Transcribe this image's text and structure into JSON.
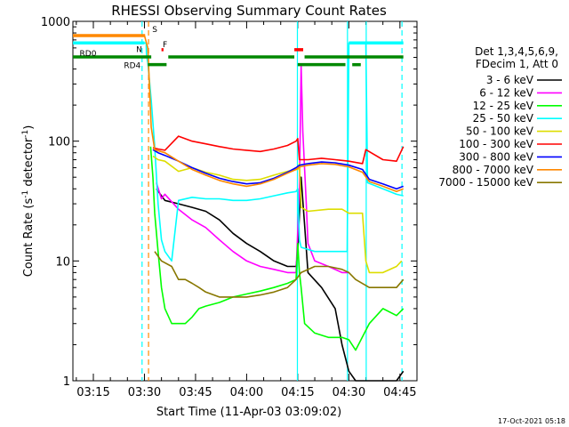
{
  "chart_data": {
    "type": "line",
    "title": "RHESSI Observing Summary Count Rates",
    "xlabel": "Start Time (11-Apr-03 03:09:02)",
    "ylabel_main": "Count Rate (s",
    "ylabel_mid": " detector",
    "ylabel_end": ")",
    "ylabel_sup": "-1",
    "yscale": "log",
    "ylim": [
      1,
      1000
    ],
    "xlim_min": [
      189,
      290
    ],
    "y_ticks": [
      {
        "value": 1,
        "label": "1"
      },
      {
        "value": 10,
        "label": "10"
      },
      {
        "value": 100,
        "label": "100"
      },
      {
        "value": 1000,
        "label": "1000"
      }
    ],
    "x_ticks": [
      {
        "value": 195,
        "label": "03:15"
      },
      {
        "value": 210,
        "label": "03:30"
      },
      {
        "value": 225,
        "label": "03:45"
      },
      {
        "value": 240,
        "label": "04:00"
      },
      {
        "value": 255,
        "label": "04:15"
      },
      {
        "value": 270,
        "label": "04:30"
      },
      {
        "value": 285,
        "label": "04:45"
      }
    ],
    "legend_header": [
      "Det 1,3,4,5,6,9,",
      "FDecim 1, Att 0"
    ],
    "legend_position": "right",
    "timestamp": "17-Oct-2021 05:18",
    "series": [
      {
        "name": "3 - 6 keV",
        "color": "#000000",
        "points": [
          [
            213.5,
            40
          ],
          [
            216,
            32
          ],
          [
            220,
            30
          ],
          [
            224,
            28
          ],
          [
            228,
            26
          ],
          [
            232,
            22
          ],
          [
            236,
            17
          ],
          [
            240,
            14
          ],
          [
            244,
            12
          ],
          [
            248,
            10
          ],
          [
            252,
            9
          ],
          [
            254.5,
            9
          ],
          [
            255,
            12
          ],
          [
            256,
            50
          ],
          [
            257,
            20
          ],
          [
            258,
            8
          ],
          [
            262,
            6
          ],
          [
            266,
            4
          ],
          [
            268,
            2
          ],
          [
            270,
            1.2
          ],
          [
            272,
            1
          ],
          [
            276,
            1
          ],
          [
            280,
            1
          ],
          [
            284,
            1
          ],
          [
            286,
            1.2
          ]
        ]
      },
      {
        "name": "6 - 12 keV",
        "color": "#ff00ff",
        "points": [
          [
            213.5,
            45
          ],
          [
            215,
            33
          ],
          [
            216,
            36
          ],
          [
            220,
            27
          ],
          [
            224,
            22
          ],
          [
            228,
            19
          ],
          [
            232,
            15
          ],
          [
            236,
            12
          ],
          [
            240,
            10
          ],
          [
            244,
            9
          ],
          [
            248,
            8.5
          ],
          [
            252,
            8
          ],
          [
            254.5,
            8
          ],
          [
            255.5,
            40
          ],
          [
            256,
            430
          ],
          [
            256.5,
            120
          ],
          [
            257.5,
            30
          ],
          [
            258,
            14
          ],
          [
            260,
            10
          ],
          [
            264,
            9
          ],
          [
            268,
            8
          ],
          [
            270,
            8
          ]
        ]
      },
      {
        "name": "12 - 25 keV",
        "color": "#00ff00",
        "points": [
          [
            211.8,
            90
          ],
          [
            212.5,
            50
          ],
          [
            213,
            25
          ],
          [
            214,
            12
          ],
          [
            215,
            6
          ],
          [
            216,
            4
          ],
          [
            218,
            3
          ],
          [
            220,
            3
          ],
          [
            222,
            3
          ],
          [
            224,
            3.4
          ],
          [
            226,
            4
          ],
          [
            228,
            4.2
          ],
          [
            232,
            4.5
          ],
          [
            236,
            5
          ],
          [
            240,
            5.3
          ],
          [
            244,
            5.6
          ],
          [
            248,
            6
          ],
          [
            252,
            6.5
          ],
          [
            254.5,
            7
          ],
          [
            255,
            14
          ],
          [
            255.5,
            8
          ],
          [
            256,
            6
          ],
          [
            257,
            3
          ],
          [
            260,
            2.5
          ],
          [
            264,
            2.3
          ],
          [
            268,
            2.3
          ],
          [
            270,
            2.2
          ],
          [
            272,
            1.8
          ],
          [
            276,
            3
          ],
          [
            280,
            4
          ],
          [
            284,
            3.5
          ],
          [
            286,
            4
          ]
        ]
      },
      {
        "name": "25 - 50 keV",
        "color": "#00ffff",
        "points": [
          [
            189,
            660
          ],
          [
            210,
            660
          ],
          [
            210.5,
            660
          ],
          [
            210.6,
            520
          ],
          [
            211,
            450
          ],
          [
            212,
            220
          ],
          [
            213,
            90
          ],
          [
            214,
            30
          ],
          [
            215,
            15
          ],
          [
            216,
            12
          ],
          [
            218,
            10
          ],
          [
            220,
            32
          ],
          [
            224,
            34
          ],
          [
            228,
            33
          ],
          [
            232,
            33
          ],
          [
            236,
            32
          ],
          [
            240,
            32
          ],
          [
            244,
            33
          ],
          [
            248,
            35
          ],
          [
            252,
            37
          ],
          [
            254.5,
            38
          ],
          [
            255,
            40
          ],
          [
            255.5,
            15
          ],
          [
            256,
            13
          ],
          [
            260,
            12
          ],
          [
            264,
            12
          ],
          [
            268,
            12
          ],
          [
            269.5,
            12
          ],
          [
            270,
            660
          ],
          [
            275,
            660
          ],
          [
            275.5,
            45
          ],
          [
            280,
            40
          ],
          [
            284,
            36
          ],
          [
            286,
            35
          ]
        ]
      },
      {
        "name": "50 - 100 keV",
        "color": "#dddd00",
        "points": [
          [
            212.5,
            75
          ],
          [
            214,
            70
          ],
          [
            216,
            68
          ],
          [
            220,
            56
          ],
          [
            224,
            60
          ],
          [
            228,
            55
          ],
          [
            232,
            52
          ],
          [
            236,
            48
          ],
          [
            240,
            47
          ],
          [
            244,
            48
          ],
          [
            248,
            52
          ],
          [
            252,
            56
          ],
          [
            254.5,
            58
          ],
          [
            255,
            58
          ],
          [
            255.5,
            65
          ],
          [
            256,
            28
          ],
          [
            258,
            26
          ],
          [
            264,
            27
          ],
          [
            268,
            27
          ],
          [
            270,
            25
          ],
          [
            274,
            25
          ],
          [
            275,
            10
          ],
          [
            276,
            8
          ],
          [
            280,
            8
          ],
          [
            284,
            9
          ],
          [
            285.5,
            10
          ]
        ]
      },
      {
        "name": "100 - 300 keV",
        "color": "#ff0000",
        "points": [
          [
            212.5,
            88
          ],
          [
            214,
            86
          ],
          [
            216,
            84
          ],
          [
            220,
            110
          ],
          [
            224,
            100
          ],
          [
            228,
            95
          ],
          [
            232,
            90
          ],
          [
            236,
            86
          ],
          [
            240,
            84
          ],
          [
            244,
            82
          ],
          [
            248,
            86
          ],
          [
            252,
            92
          ],
          [
            254.5,
            100
          ],
          [
            255,
            105
          ],
          [
            255.5,
            70
          ],
          [
            258,
            70
          ],
          [
            262,
            72
          ],
          [
            266,
            70
          ],
          [
            270,
            68
          ],
          [
            274,
            65
          ],
          [
            275,
            85
          ],
          [
            280,
            70
          ],
          [
            284,
            68
          ],
          [
            286,
            90
          ]
        ]
      },
      {
        "name": "300 - 800 keV",
        "color": "#0000ff",
        "points": [
          [
            212.5,
            85
          ],
          [
            214,
            80
          ],
          [
            216,
            76
          ],
          [
            220,
            68
          ],
          [
            224,
            60
          ],
          [
            228,
            54
          ],
          [
            232,
            49
          ],
          [
            236,
            46
          ],
          [
            240,
            44
          ],
          [
            244,
            45
          ],
          [
            248,
            49
          ],
          [
            252,
            55
          ],
          [
            254.5,
            60
          ],
          [
            255.5,
            63
          ],
          [
            258,
            65
          ],
          [
            262,
            67
          ],
          [
            266,
            66
          ],
          [
            270,
            63
          ],
          [
            274,
            58
          ],
          [
            276,
            48
          ],
          [
            280,
            44
          ],
          [
            284,
            40
          ],
          [
            286,
            42
          ]
        ]
      },
      {
        "name": "800 - 7000 keV",
        "color": "#ff8800",
        "points": [
          [
            189,
            760
          ],
          [
            210,
            760
          ],
          [
            211,
            600
          ],
          [
            212,
            130
          ],
          [
            213,
            85
          ],
          [
            216,
            80
          ],
          [
            220,
            68
          ],
          [
            224,
            58
          ],
          [
            228,
            52
          ],
          [
            232,
            47
          ],
          [
            236,
            44
          ],
          [
            240,
            42
          ],
          [
            244,
            44
          ],
          [
            248,
            48
          ],
          [
            252,
            54
          ],
          [
            254.5,
            58
          ],
          [
            255.5,
            61
          ],
          [
            258,
            63
          ],
          [
            262,
            65
          ],
          [
            266,
            64
          ],
          [
            270,
            61
          ],
          [
            274,
            55
          ],
          [
            276,
            46
          ],
          [
            280,
            42
          ],
          [
            284,
            38
          ],
          [
            286,
            40
          ]
        ]
      },
      {
        "name": "7000 - 15000 keV",
        "color": "#887700",
        "points": [
          [
            213,
            12
          ],
          [
            215,
            10
          ],
          [
            218,
            9
          ],
          [
            220,
            7
          ],
          [
            222,
            7
          ],
          [
            224,
            6.5
          ],
          [
            226,
            6
          ],
          [
            228,
            5.5
          ],
          [
            232,
            5
          ],
          [
            236,
            5
          ],
          [
            240,
            5
          ],
          [
            244,
            5.2
          ],
          [
            248,
            5.5
          ],
          [
            252,
            6
          ],
          [
            254.5,
            7
          ],
          [
            256,
            8
          ],
          [
            260,
            9
          ],
          [
            264,
            9
          ],
          [
            268,
            8.5
          ],
          [
            270,
            8
          ],
          [
            272,
            7
          ],
          [
            276,
            6
          ],
          [
            280,
            6
          ],
          [
            284,
            6
          ],
          [
            286,
            7
          ]
        ]
      }
    ],
    "flag_bars": [
      {
        "label": "",
        "color": "#ff8800",
        "y": 760,
        "segments": [
          [
            189,
            210.2
          ]
        ]
      },
      {
        "label": "S",
        "color": "#ff8800",
        "y": 760,
        "segments": [
          [
            212.0,
            212.0
          ]
        ]
      },
      {
        "label": "N",
        "color": "#00ffff",
        "y": 660,
        "segments": [
          [
            189,
            210
          ],
          [
            270,
            286
          ]
        ]
      },
      {
        "label": "F",
        "color": "#ff0000",
        "y": 580,
        "segments": [
          [
            215,
            215.6
          ],
          [
            254,
            256.6
          ]
        ]
      },
      {
        "label": "RD0",
        "color": "#008800",
        "y": 505,
        "segments": [
          [
            189,
            212
          ],
          [
            217,
            254
          ],
          [
            257,
            286
          ]
        ]
      },
      {
        "label": "RD4",
        "color": "#008800",
        "y": 435,
        "segments": [
          [
            211,
            216.5
          ],
          [
            255,
            269
          ],
          [
            271,
            273.5
          ]
        ]
      }
    ],
    "vlines": [
      {
        "x": 209.3,
        "color": "#00ffff",
        "style": "dashed"
      },
      {
        "x": 211.2,
        "color": "#ff8800",
        "style": "dashed"
      },
      {
        "x": 254.9,
        "color": "#00ffff",
        "style": "solid"
      },
      {
        "x": 269.6,
        "color": "#00ffff",
        "style": "solid"
      },
      {
        "x": 275.1,
        "color": "#00ffff",
        "style": "solid"
      },
      {
        "x": 285.6,
        "color": "#00ffff",
        "style": "dashed"
      }
    ]
  }
}
